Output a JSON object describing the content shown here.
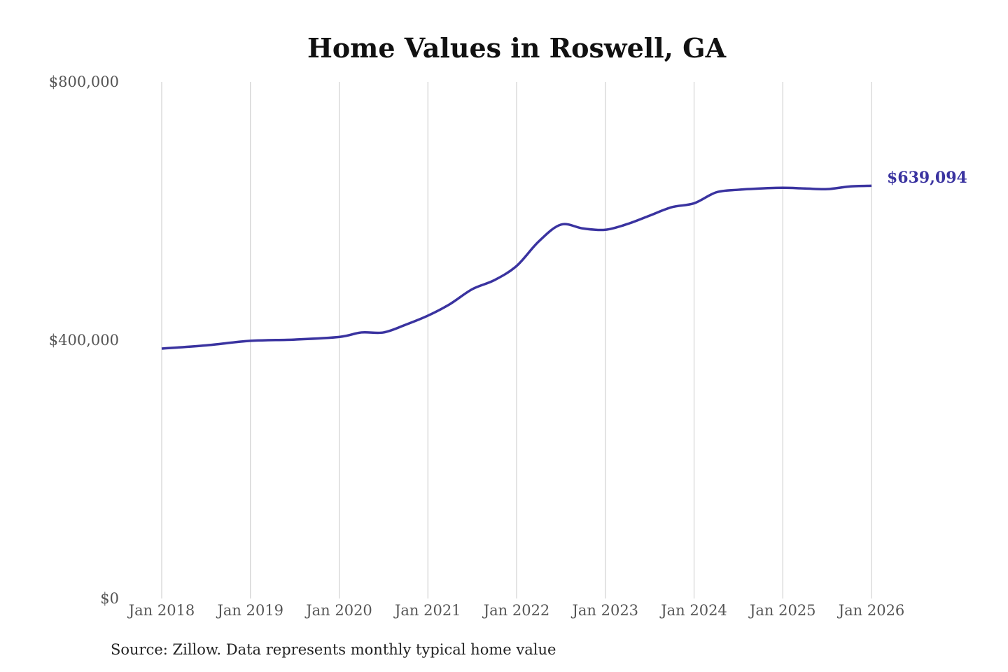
{
  "chart_data": {
    "type": "line",
    "title": "Home Values in Roswell, GA",
    "xlabel": "",
    "ylabel": "",
    "ylim": [
      0,
      800000
    ],
    "y_ticks": [
      0,
      400000,
      800000
    ],
    "y_tick_labels": [
      "$0",
      "$400,000",
      "$800,000"
    ],
    "x_tick_labels": [
      "Jan 2018",
      "Jan 2019",
      "Jan 2020",
      "Jan 2021",
      "Jan 2022",
      "Jan 2023",
      "Jan 2024",
      "Jan 2025",
      "Jan 2026"
    ],
    "grid": "vertical",
    "line_color": "#3a33a0",
    "x": [
      "2018-01",
      "2018-07",
      "2019-01",
      "2019-07",
      "2020-01",
      "2020-04",
      "2020-07",
      "2020-10",
      "2021-01",
      "2021-04",
      "2021-07",
      "2021-10",
      "2022-01",
      "2022-04",
      "2022-07",
      "2022-10",
      "2023-01",
      "2023-04",
      "2023-07",
      "2023-10",
      "2024-01",
      "2024-04",
      "2024-07",
      "2024-10",
      "2025-01",
      "2025-04",
      "2025-07",
      "2025-10",
      "2026-01"
    ],
    "values": [
      387000,
      392000,
      399000,
      401000,
      405000,
      412000,
      412000,
      424000,
      438000,
      456000,
      479000,
      493000,
      515000,
      553000,
      579000,
      573000,
      571000,
      580000,
      593000,
      606000,
      612000,
      629000,
      633000,
      635000,
      636000,
      635000,
      634000,
      638000,
      639094
    ],
    "end_label": "$639,094"
  },
  "source": "Source: Zillow. Data represents monthly typical home value"
}
